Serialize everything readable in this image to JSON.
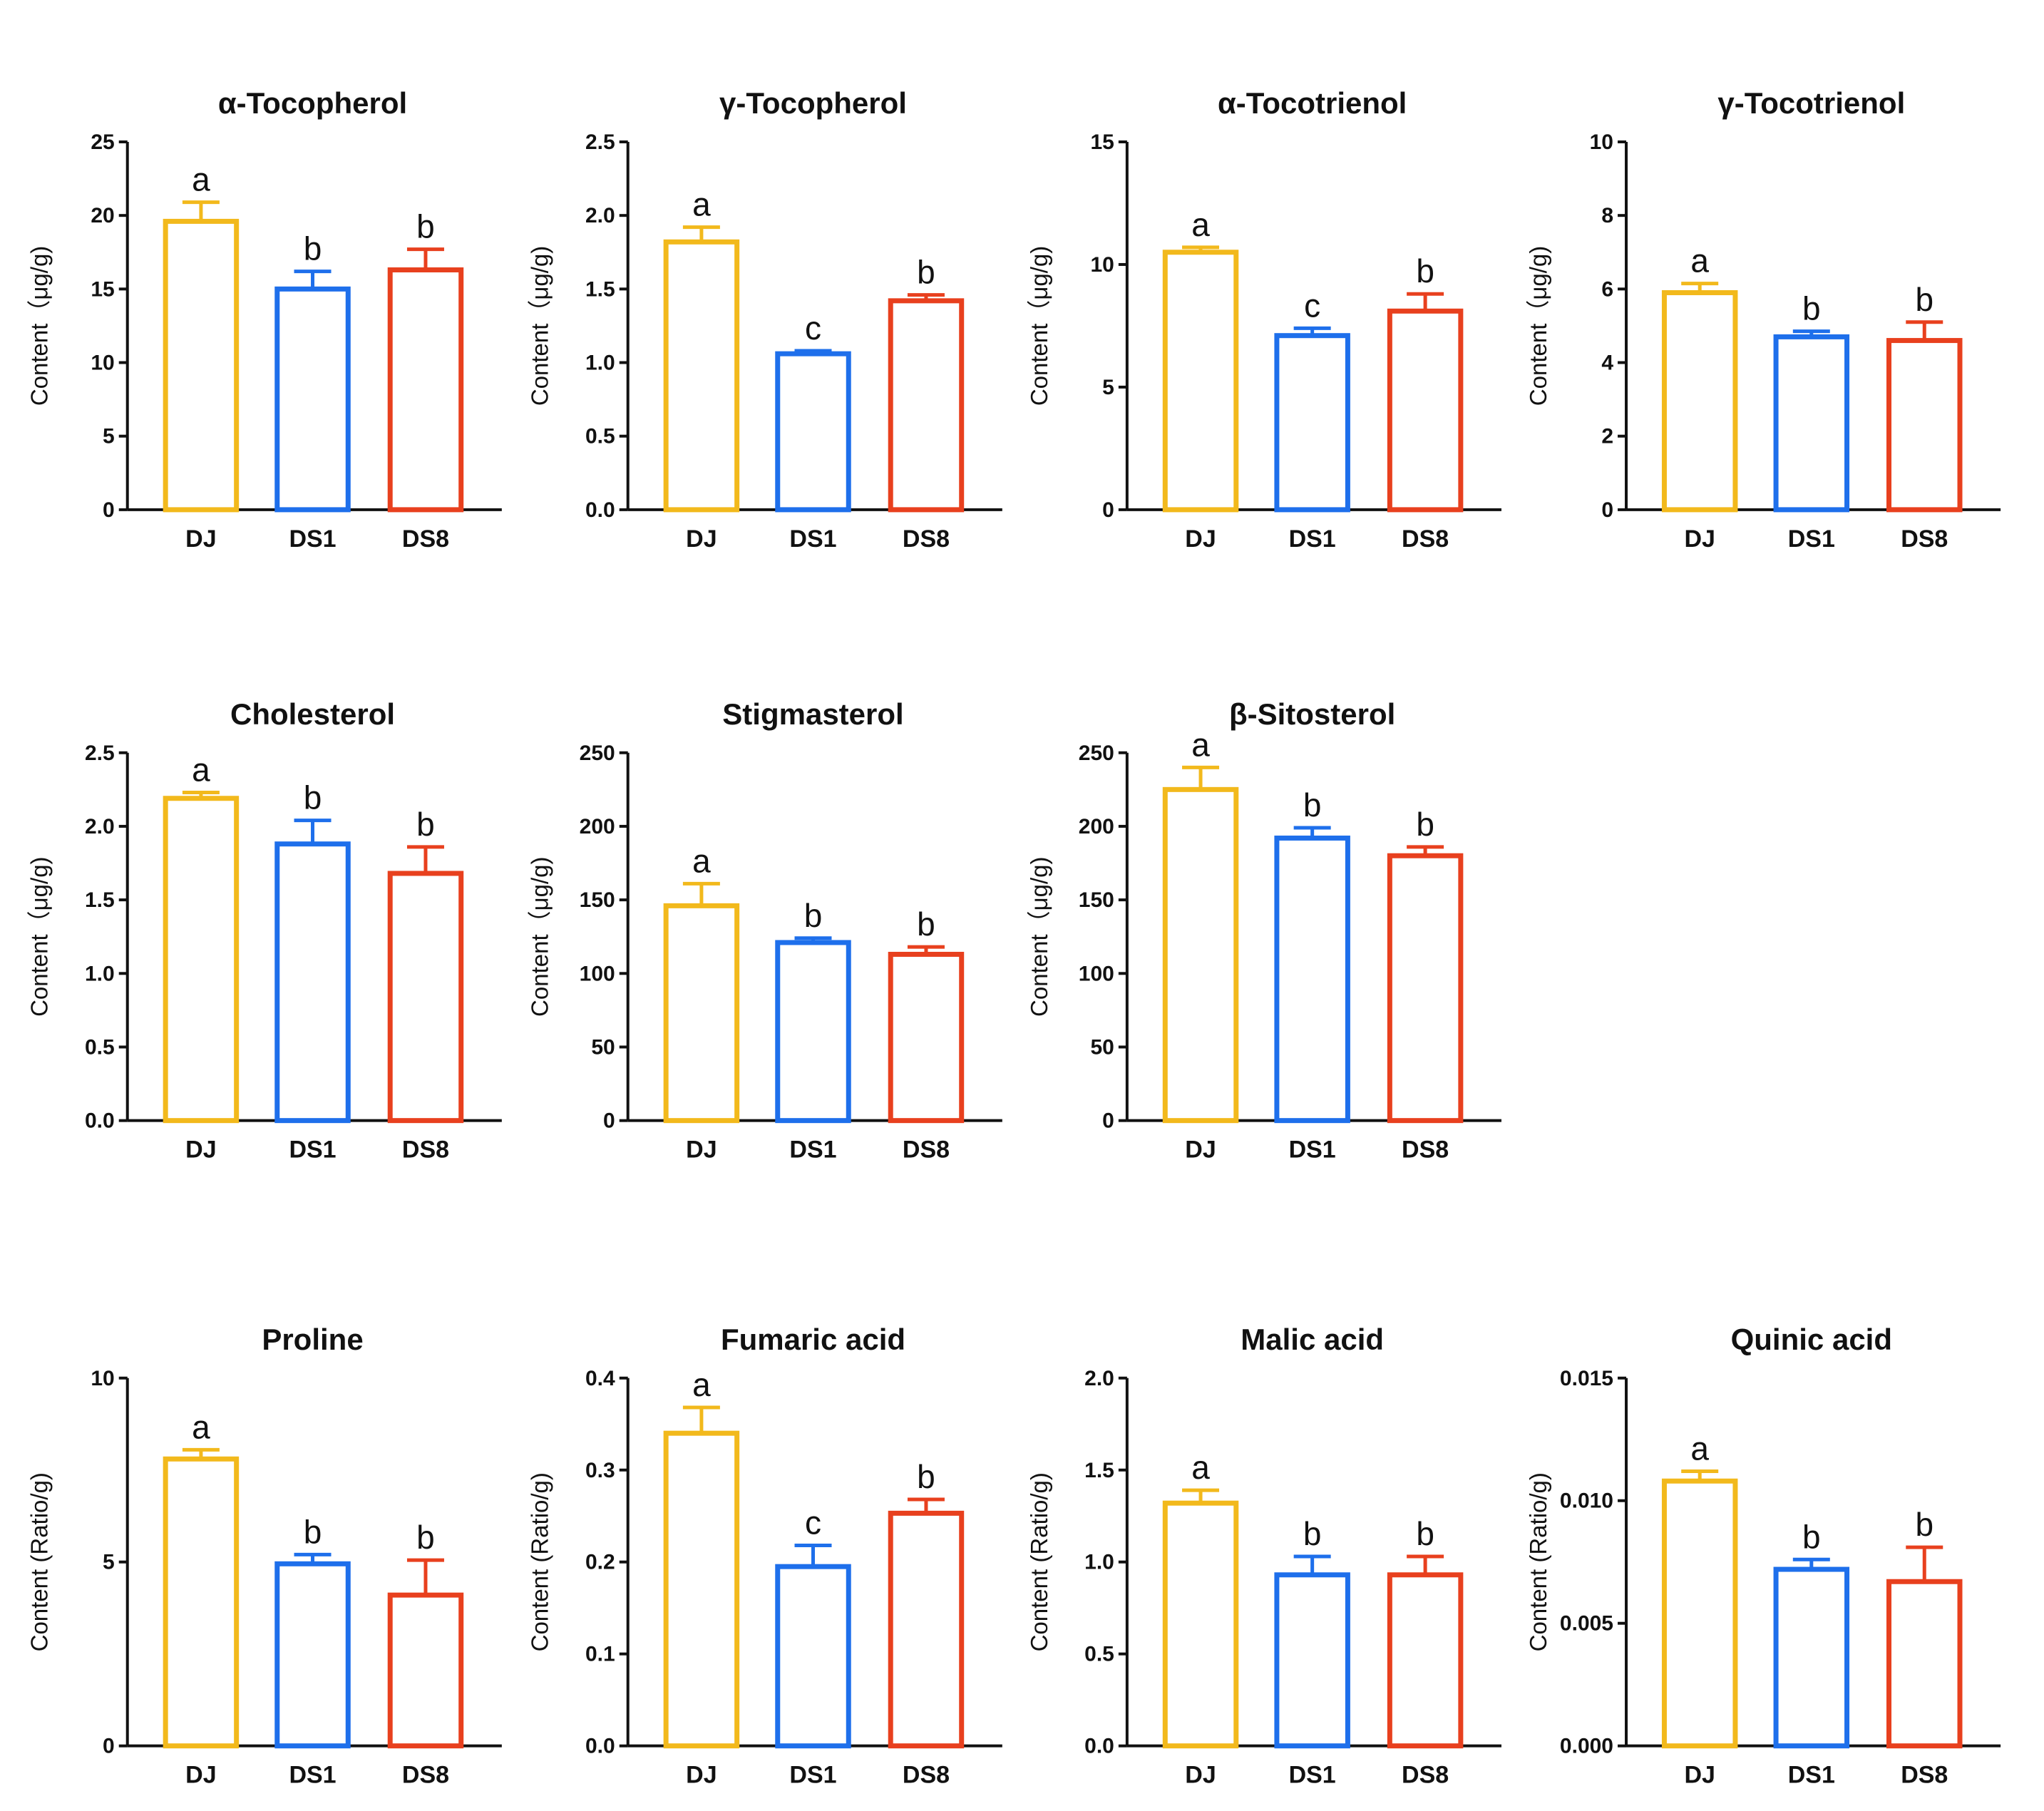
{
  "colors": {
    "DJ": "#F2B91C",
    "DS1": "#1E6FEB",
    "DS8": "#E8401E",
    "axis": "#111111"
  },
  "chart_data": [
    {
      "type": "bar",
      "title": "α-Tocopherol",
      "ylabel": "Content（μg/g)",
      "categories": [
        "DJ",
        "DS1",
        "DS8"
      ],
      "values": [
        19.6,
        15.0,
        16.3
      ],
      "errors": [
        1.3,
        1.2,
        1.4
      ],
      "letters": [
        "a",
        "b",
        "b"
      ],
      "ylim": [
        0,
        25
      ],
      "yticks": [
        0,
        5,
        10,
        15,
        20,
        25
      ],
      "yticklabels": [
        "0",
        "5",
        "10",
        "15",
        "20",
        "25"
      ]
    },
    {
      "type": "bar",
      "title": "γ-Tocopherol",
      "ylabel": "Content（μg/g)",
      "categories": [
        "DJ",
        "DS1",
        "DS8"
      ],
      "values": [
        1.82,
        1.06,
        1.42
      ],
      "errors": [
        0.1,
        0.02,
        0.04
      ],
      "letters": [
        "a",
        "c",
        "b"
      ],
      "ylim": [
        0,
        2.5
      ],
      "yticks": [
        0,
        0.5,
        1.0,
        1.5,
        2.0,
        2.5
      ],
      "yticklabels": [
        "0.0",
        "0.5",
        "1.0",
        "1.5",
        "2.0",
        "2.5"
      ]
    },
    {
      "type": "bar",
      "title": "α-Tocotrienol",
      "ylabel": "Content（μg/g)",
      "categories": [
        "DJ",
        "DS1",
        "DS8"
      ],
      "values": [
        10.5,
        7.1,
        8.1
      ],
      "errors": [
        0.2,
        0.3,
        0.7
      ],
      "letters": [
        "a",
        "c",
        "b"
      ],
      "ylim": [
        0,
        15
      ],
      "yticks": [
        0,
        5,
        10,
        15
      ],
      "yticklabels": [
        "0",
        "5",
        "10",
        "15"
      ]
    },
    {
      "type": "bar",
      "title": "γ-Tocotrienol",
      "ylabel": "Content（μg/g)",
      "categories": [
        "DJ",
        "DS1",
        "DS8"
      ],
      "values": [
        5.9,
        4.7,
        4.6
      ],
      "errors": [
        0.25,
        0.15,
        0.5
      ],
      "letters": [
        "a",
        "b",
        "b"
      ],
      "ylim": [
        0,
        10
      ],
      "yticks": [
        0,
        2,
        4,
        6,
        8,
        10
      ],
      "yticklabels": [
        "0",
        "2",
        "4",
        "6",
        "8",
        "10"
      ]
    },
    {
      "type": "bar",
      "title": "Cholesterol",
      "ylabel": "Content（μg/g)",
      "categories": [
        "DJ",
        "DS1",
        "DS8"
      ],
      "values": [
        2.19,
        1.88,
        1.68
      ],
      "errors": [
        0.04,
        0.16,
        0.18
      ],
      "letters": [
        "a",
        "b",
        "b"
      ],
      "ylim": [
        0,
        2.5
      ],
      "yticks": [
        0,
        0.5,
        1.0,
        1.5,
        2.0,
        2.5
      ],
      "yticklabels": [
        "0.0",
        "0.5",
        "1.0",
        "1.5",
        "2.0",
        "2.5"
      ]
    },
    {
      "type": "bar",
      "title": "Stigmasterol",
      "ylabel": "Content（μg/g)",
      "categories": [
        "DJ",
        "DS1",
        "DS8"
      ],
      "values": [
        146,
        121,
        113
      ],
      "errors": [
        15,
        3,
        5
      ],
      "letters": [
        "a",
        "b",
        "b"
      ],
      "ylim": [
        0,
        250
      ],
      "yticks": [
        0,
        50,
        100,
        150,
        200,
        250
      ],
      "yticklabels": [
        "0",
        "50",
        "100",
        "150",
        "200",
        "250"
      ]
    },
    {
      "type": "bar",
      "title": "β-Sitosterol",
      "ylabel": "Content（μg/g)",
      "categories": [
        "DJ",
        "DS1",
        "DS8"
      ],
      "values": [
        225,
        192,
        180
      ],
      "errors": [
        15,
        7,
        6
      ],
      "letters": [
        "a",
        "b",
        "b"
      ],
      "ylim": [
        0,
        250
      ],
      "yticks": [
        0,
        50,
        100,
        150,
        200,
        250
      ],
      "yticklabels": [
        "0",
        "50",
        "100",
        "150",
        "200",
        "250"
      ]
    },
    {
      "type": "bar",
      "title": "Proline",
      "ylabel": "Content (Ratio/g)",
      "categories": [
        "DJ",
        "DS1",
        "DS8"
      ],
      "values": [
        7.8,
        4.95,
        4.1
      ],
      "errors": [
        0.25,
        0.25,
        0.95
      ],
      "letters": [
        "a",
        "b",
        "b"
      ],
      "ylim": [
        0,
        10
      ],
      "yticks": [
        0,
        5,
        10
      ],
      "yticklabels": [
        "0",
        "5",
        "10"
      ]
    },
    {
      "type": "bar",
      "title": "Fumaric acid",
      "ylabel": "Content (Ratio/g)",
      "categories": [
        "DJ",
        "DS1",
        "DS8"
      ],
      "values": [
        0.34,
        0.195,
        0.253
      ],
      "errors": [
        0.028,
        0.023,
        0.015
      ],
      "letters": [
        "a",
        "c",
        "b"
      ],
      "ylim": [
        0,
        0.4
      ],
      "yticks": [
        0,
        0.1,
        0.2,
        0.3,
        0.4
      ],
      "yticklabels": [
        "0.0",
        "0.1",
        "0.2",
        "0.3",
        "0.4"
      ]
    },
    {
      "type": "bar",
      "title": "Malic acid",
      "ylabel": "Content (Ratio/g)",
      "categories": [
        "DJ",
        "DS1",
        "DS8"
      ],
      "values": [
        1.32,
        0.93,
        0.93
      ],
      "errors": [
        0.07,
        0.1,
        0.1
      ],
      "letters": [
        "a",
        "b",
        "b"
      ],
      "ylim": [
        0,
        2.0
      ],
      "yticks": [
        0,
        0.5,
        1.0,
        1.5,
        2.0
      ],
      "yticklabels": [
        "0.0",
        "0.5",
        "1.0",
        "1.5",
        "2.0"
      ]
    },
    {
      "type": "bar",
      "title": "Quinic acid",
      "ylabel": "Content (Ratio/g)",
      "categories": [
        "DJ",
        "DS1",
        "DS8"
      ],
      "values": [
        0.0108,
        0.0072,
        0.0067
      ],
      "errors": [
        0.0004,
        0.0004,
        0.0014
      ],
      "letters": [
        "a",
        "b",
        "b"
      ],
      "ylim": [
        0,
        0.015
      ],
      "yticks": [
        0,
        0.005,
        0.01,
        0.015
      ],
      "yticklabels": [
        "0.000",
        "0.005",
        "0.010",
        "0.015"
      ]
    }
  ]
}
